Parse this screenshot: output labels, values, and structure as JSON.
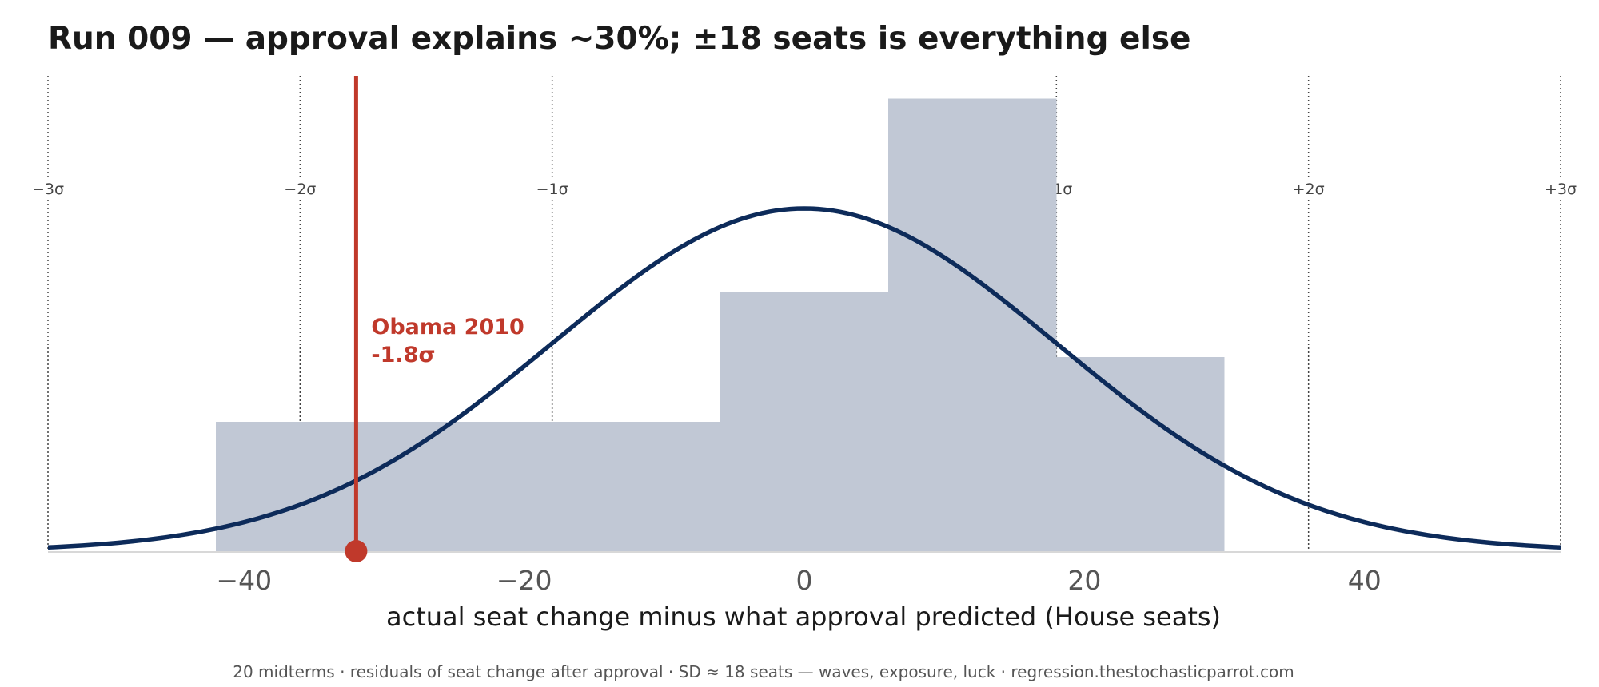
{
  "chart_data": {
    "type": "bar",
    "title": "Run 009 — approval explains ~30%; ±18 seats is everything else",
    "xlabel": "actual seat change minus what approval predicted  (House seats)",
    "ylabel": "",
    "footer": "20 midterms · residuals of seat change after approval · SD ≈ 18 seats — waves, exposure, luck · regression.thestochasticparrot.com",
    "xlim": [
      -54,
      54
    ],
    "x_ticks": [
      -40,
      -20,
      0,
      20,
      40
    ],
    "x_tick_labels": [
      "−40",
      "−20",
      "0",
      "20",
      "40"
    ],
    "sd": 18,
    "sigma_lines": [
      {
        "x": -54,
        "label": "−3σ"
      },
      {
        "x": -36,
        "label": "−2σ"
      },
      {
        "x": -18,
        "label": "−1σ"
      },
      {
        "x": 18,
        "label": "+1σ"
      },
      {
        "x": 36,
        "label": "+2σ"
      },
      {
        "x": 54,
        "label": "+3σ"
      }
    ],
    "histogram": {
      "bins": [
        {
          "x0": -42,
          "x1": -30,
          "count": 2
        },
        {
          "x0": -30,
          "x1": -18,
          "count": 2
        },
        {
          "x0": -18,
          "x1": -6,
          "count": 2
        },
        {
          "x0": -6,
          "x1": 6,
          "count": 4
        },
        {
          "x0": 6,
          "x1": 18,
          "count": 7
        },
        {
          "x0": 18,
          "x1": 30,
          "count": 3
        }
      ],
      "color": "#c1c8d5"
    },
    "normal_curve": {
      "mean": 0,
      "sd": 18,
      "peak": 5.3,
      "color": "#0d2b5a"
    },
    "annotation": {
      "x": -32,
      "label": "Obama 2010",
      "sigma_text": "-1.8σ",
      "color": "#c0392b"
    },
    "ylim": [
      0,
      7.35
    ],
    "grid": false,
    "legend": "none"
  }
}
